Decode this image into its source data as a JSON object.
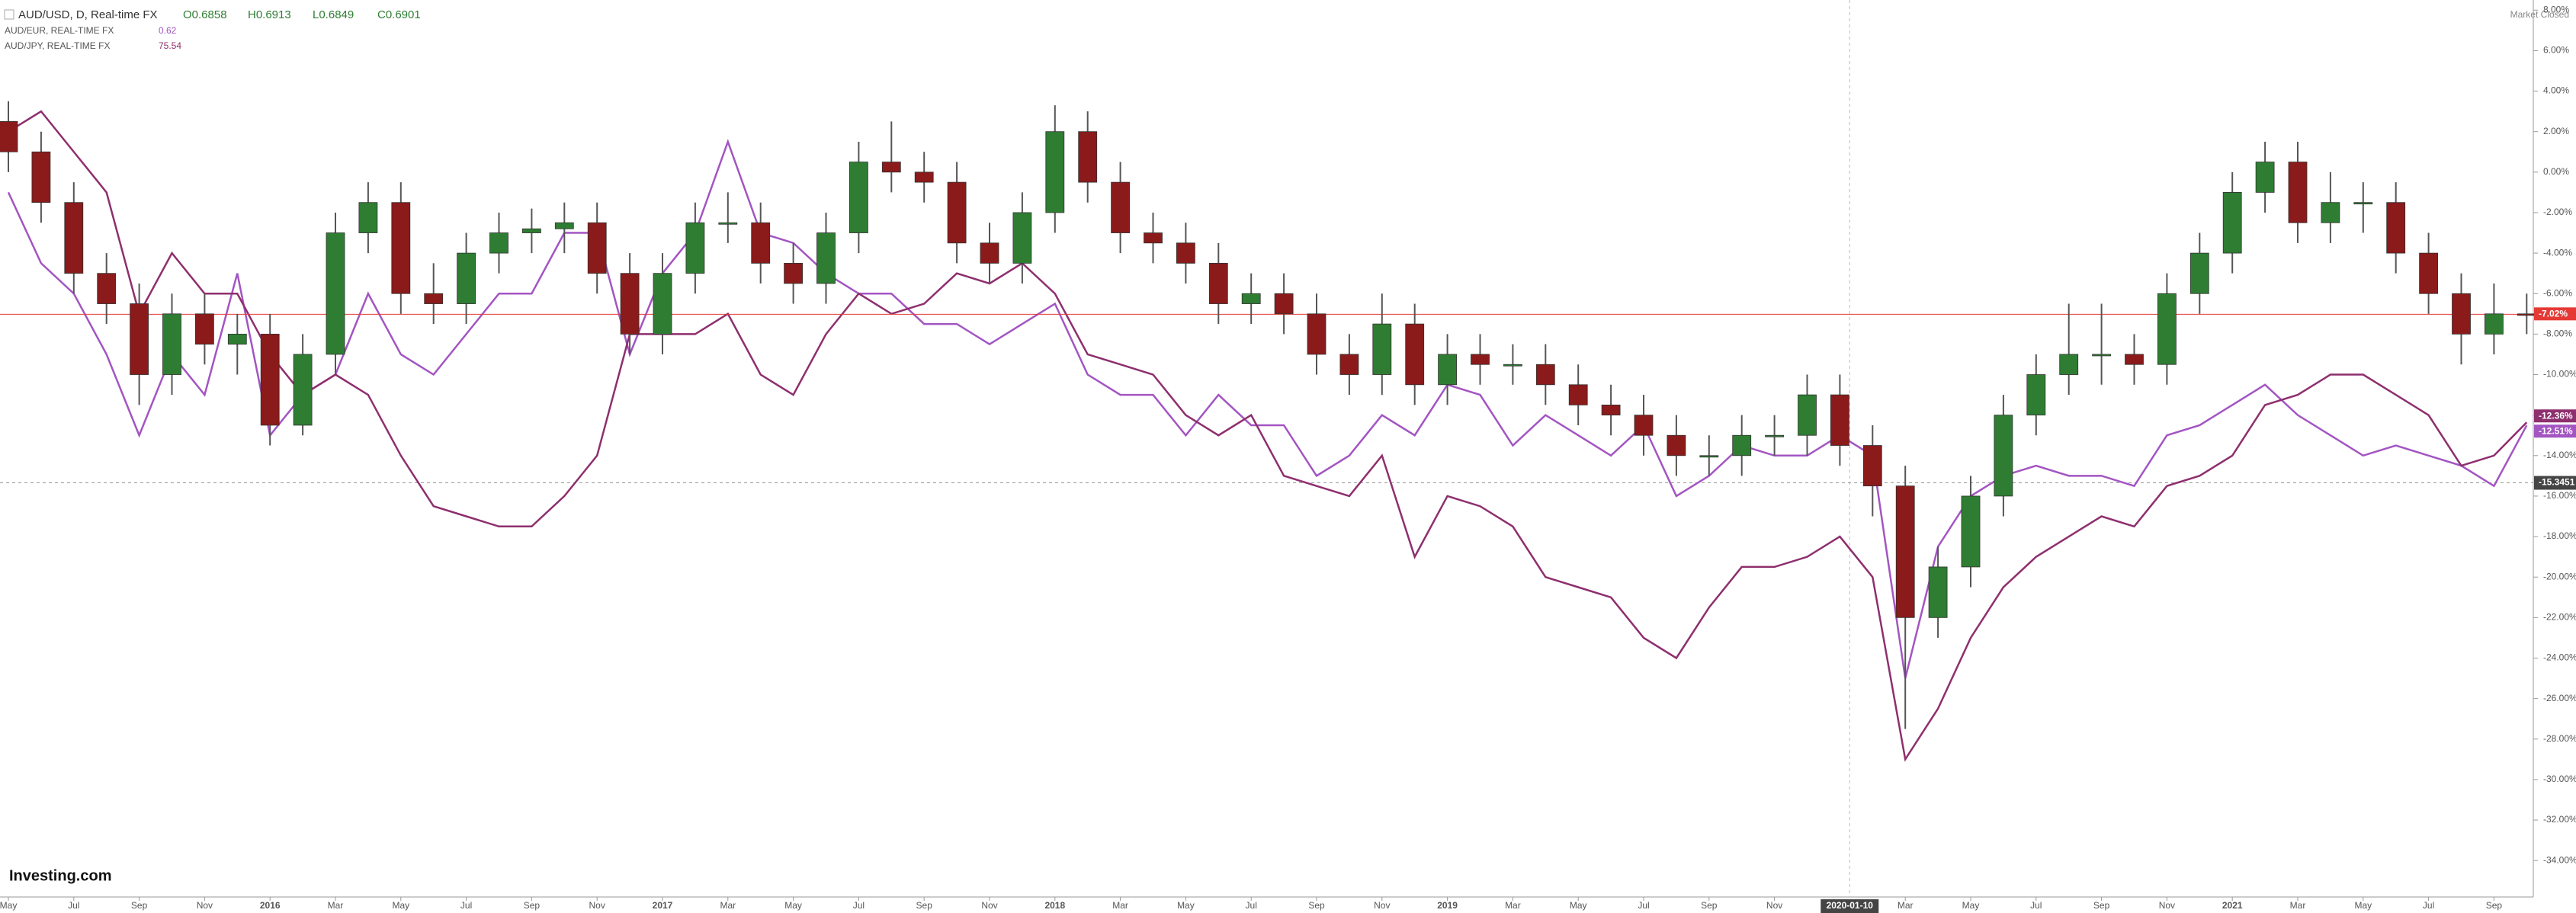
{
  "header": {
    "title": "AUD/USD, D, Real-time FX",
    "values": [
      "O0.6858",
      "H0.6913",
      "L0.6849",
      "C0.6901"
    ],
    "status": "Market Closed"
  },
  "logo": "Investing.com",
  "chart_data": {
    "type": "candlestick",
    "x": [
      "2015-05",
      "2015-06",
      "2015-07",
      "2015-08",
      "2015-09",
      "2015-10",
      "2015-11",
      "2015-12",
      "2016-01",
      "2016-02",
      "2016-03",
      "2016-04",
      "2016-05",
      "2016-06",
      "2016-07",
      "2016-08",
      "2016-09",
      "2016-10",
      "2016-11",
      "2016-12",
      "2017-01",
      "2017-02",
      "2017-03",
      "2017-04",
      "2017-05",
      "2017-06",
      "2017-07",
      "2017-08",
      "2017-09",
      "2017-10",
      "2017-11",
      "2017-12",
      "2018-01",
      "2018-02",
      "2018-03",
      "2018-04",
      "2018-05",
      "2018-06",
      "2018-07",
      "2018-08",
      "2018-09",
      "2018-10",
      "2018-11",
      "2018-12",
      "2019-01",
      "2019-02",
      "2019-03",
      "2019-04",
      "2019-05",
      "2019-06",
      "2019-07",
      "2019-08",
      "2019-09",
      "2019-10",
      "2019-11",
      "2019-12",
      "2020-01",
      "2020-02",
      "2020-03",
      "2020-04",
      "2020-05",
      "2020-06",
      "2020-07",
      "2020-08",
      "2020-09",
      "2020-10",
      "2020-11",
      "2020-12",
      "2021-01",
      "2021-02",
      "2021-03",
      "2021-04",
      "2021-05",
      "2021-06",
      "2021-07",
      "2021-08",
      "2021-09",
      "2021-10"
    ],
    "candles": {
      "name": "AUD/USD",
      "up_color": "#2e7d32",
      "down_color": "#8b1a1a",
      "price_label": "-7.02%",
      "line_color": "#e53935",
      "open": [
        2.5,
        1,
        -1.5,
        -5,
        -6.5,
        -10,
        -7,
        -8.5,
        -8,
        -12.5,
        -9,
        -3,
        -1.5,
        -6,
        -6.5,
        -4,
        -3,
        -2.8,
        -2.5,
        -5,
        -8,
        -5,
        -2.5,
        -2.5,
        -4.5,
        -5.5,
        -3,
        0.5,
        0,
        -0.5,
        -3.5,
        -4.5,
        -2,
        2,
        -0.5,
        -3,
        -3.5,
        -4.5,
        -6.5,
        -6,
        -7,
        -9,
        -10,
        -7.5,
        -10.5,
        -9,
        -9.5,
        -9.5,
        -10.5,
        -11.5,
        -12,
        -13,
        -14,
        -14,
        -13,
        -13,
        -11,
        -13.5,
        -15.5,
        -22,
        -19.5,
        -16,
        -12,
        -10,
        -9,
        -9,
        -9.5,
        -6,
        -4,
        -1,
        0.5,
        -2.5,
        -1.5,
        -1.5,
        -4,
        -6,
        -8,
        -7
      ],
      "high": [
        3.5,
        2,
        -0.5,
        -4,
        -5.5,
        -6,
        -6,
        -7,
        -7,
        -8,
        -2,
        -0.5,
        -0.5,
        -4.5,
        -3,
        -2,
        -1.8,
        -1.5,
        -1.5,
        -4,
        -4,
        -1.5,
        -1,
        -1.5,
        -3.5,
        -2,
        1.5,
        2.5,
        1,
        0.5,
        -2.5,
        -1,
        3.3,
        3,
        0.5,
        -2,
        -2.5,
        -3.5,
        -5,
        -5,
        -6,
        -8,
        -6,
        -6.5,
        -8,
        -8,
        -8.5,
        -8.5,
        -9.5,
        -10.5,
        -11,
        -12,
        -13,
        -12,
        -12,
        -10,
        -10,
        -12.5,
        -14.5,
        -18.5,
        -15,
        -11,
        -9,
        -6.5,
        -6.5,
        -8,
        -5,
        -3,
        0,
        1.5,
        1.5,
        0,
        -0.5,
        -0.5,
        -3,
        -5,
        -5.5,
        -6
      ],
      "low": [
        0,
        -2.5,
        -6,
        -7.5,
        -11.5,
        -11,
        -9.5,
        -10,
        -13.5,
        -13,
        -10,
        -4,
        -7,
        -7.5,
        -7.5,
        -5,
        -4,
        -4,
        -6,
        -9,
        -9,
        -6,
        -3.5,
        -5.5,
        -6.5,
        -6.5,
        -4,
        -1,
        -1.5,
        -4.5,
        -5.5,
        -5.5,
        -3,
        -1.5,
        -4,
        -4.5,
        -5.5,
        -7.5,
        -7.5,
        -8,
        -10,
        -11,
        -11,
        -11.5,
        -11.5,
        -10.5,
        -10.5,
        -11.5,
        -12.5,
        -13,
        -14,
        -15,
        -15,
        -15,
        -14,
        -14,
        -14.5,
        -17,
        -27.5,
        -23,
        -20.5,
        -17,
        -13,
        -11,
        -10.5,
        -10.5,
        -10.5,
        -7,
        -5,
        -2,
        -3.5,
        -3.5,
        -3,
        -5,
        -7,
        -9.5,
        -9,
        -8
      ],
      "close": [
        1,
        -1.5,
        -5,
        -6.5,
        -10,
        -7,
        -8.5,
        -8,
        -12.5,
        -9,
        -3,
        -1.5,
        -6,
        -6.5,
        -4,
        -3,
        -2.8,
        -2.5,
        -5,
        -8,
        -5,
        -2.5,
        -2.5,
        -4.5,
        -5.5,
        -3,
        0.5,
        0,
        -0.5,
        -3.5,
        -4.5,
        -2,
        2,
        -0.5,
        -3,
        -3.5,
        -4.5,
        -6.5,
        -6,
        -7,
        -9,
        -10,
        -7.5,
        -10.5,
        -9,
        -9.5,
        -9.5,
        -10.5,
        -11.5,
        -12,
        -13,
        -14,
        -14,
        -13,
        -13,
        -11,
        -13.5,
        -15.5,
        -22,
        -19.5,
        -16,
        -12,
        -10,
        -9,
        -9,
        -9.5,
        -6,
        -4,
        -1,
        0.5,
        -2.5,
        -1.5,
        -1.5,
        -4,
        -6,
        -8,
        -7,
        -7.02
      ]
    },
    "series": [
      {
        "name": "AUD/EUR, REAL-TIME FX",
        "last": "0.62",
        "color": "#a355c2",
        "price_label": "-12.51%",
        "values": [
          -1,
          -4.5,
          -6,
          -9,
          -13,
          -9,
          -11,
          -5,
          -13,
          -11,
          -10,
          -6,
          -9,
          -10,
          -8,
          -6,
          -6,
          -3,
          -3,
          -9,
          -5,
          -3,
          1.5,
          -3,
          -3.5,
          -5,
          -6,
          -6,
          -7.5,
          -7.5,
          -8.5,
          -7.5,
          -6.5,
          -10,
          -11,
          -11,
          -13,
          -11,
          -12.5,
          -12.5,
          -15,
          -14,
          -12,
          -13,
          -10.5,
          -11,
          -13.5,
          -12,
          -13,
          -14,
          -12.5,
          -16,
          -15,
          -13.5,
          -14,
          -14,
          -13,
          -14,
          -25,
          -18.5,
          -16,
          -15,
          -14.5,
          -15,
          -15,
          -15.5,
          -13,
          -12.5,
          -11.5,
          -10.5,
          -12,
          -13,
          -14,
          -13.5,
          -14,
          -14.5,
          -15.5,
          -12.51
        ]
      },
      {
        "name": "AUD/JPY, REAL-TIME FX",
        "last": "75.54",
        "color": "#8e2f6e",
        "price_label": "-12.36%",
        "values": [
          2,
          3,
          1,
          -1,
          -7,
          -4,
          -6,
          -6,
          -9,
          -11,
          -10,
          -11,
          -14,
          -16.5,
          -17,
          -17.5,
          -17.5,
          -16,
          -14,
          -8,
          -8,
          -8,
          -7,
          -10,
          -11,
          -8,
          -6,
          -7,
          -6.5,
          -5,
          -5.5,
          -4.5,
          -6,
          -9,
          -9.5,
          -10,
          -12,
          -13,
          -12,
          -15,
          -15.5,
          -16,
          -14,
          -19,
          -16,
          -16.5,
          -17.5,
          -20,
          -20.5,
          -21,
          -23,
          -24,
          -21.5,
          -19.5,
          -19.5,
          -19,
          -18,
          -20,
          -29,
          -26.5,
          -23,
          -20.5,
          -19,
          -18,
          -17,
          -17.5,
          -15.5,
          -15,
          -14,
          -11.5,
          -11,
          -10,
          -10,
          -11,
          -12,
          -14.5,
          -14,
          -12.36
        ]
      }
    ],
    "crosshair": {
      "x": "2020-01-10",
      "y": -15.3451
    },
    "ylim": [
      -35.8,
      8.5
    ],
    "yticks": [
      {
        "value": 8,
        "label": "8.00%"
      },
      {
        "value": 6,
        "label": "6.00%"
      },
      {
        "value": 4,
        "label": "4.00%"
      },
      {
        "value": 2,
        "label": "2.00%"
      },
      {
        "value": 0,
        "label": "0.00%"
      },
      {
        "value": -2,
        "label": "-2.00%"
      },
      {
        "value": -4,
        "label": "-4.00%"
      },
      {
        "value": -6,
        "label": "-6.00%"
      },
      {
        "value": -8,
        "label": "-8.00%"
      },
      {
        "value": -10,
        "label": "-10.00%"
      },
      {
        "value": -12,
        "label": "-12.00%"
      },
      {
        "value": -14,
        "label": "-14.00%"
      },
      {
        "value": -16,
        "label": "-16.00%"
      },
      {
        "value": -18,
        "label": "-18.00%"
      },
      {
        "value": -20,
        "label": "-20.00%"
      },
      {
        "value": -22,
        "label": "-22.00%"
      },
      {
        "value": -24,
        "label": "-24.00%"
      },
      {
        "value": -26,
        "label": "-26.00%"
      },
      {
        "value": -28,
        "label": "-28.00%"
      },
      {
        "value": -30,
        "label": "-30.00%"
      },
      {
        "value": -32,
        "label": "-32.00%"
      },
      {
        "value": -34,
        "label": "-34.00%"
      }
    ],
    "xticks": [
      {
        "value": "2015-05",
        "label": "May"
      },
      {
        "value": "2015-07",
        "label": "Jul"
      },
      {
        "value": "2015-09",
        "label": "Sep"
      },
      {
        "value": "2015-11",
        "label": "Nov"
      },
      {
        "value": "2016-01",
        "label": "2016"
      },
      {
        "value": "2016-03",
        "label": "Mar"
      },
      {
        "value": "2016-05",
        "label": "May"
      },
      {
        "value": "2016-07",
        "label": "Jul"
      },
      {
        "value": "2016-09",
        "label": "Sep"
      },
      {
        "value": "2016-11",
        "label": "Nov"
      },
      {
        "value": "2017-01",
        "label": "2017"
      },
      {
        "value": "2017-03",
        "label": "Mar"
      },
      {
        "value": "2017-05",
        "label": "May"
      },
      {
        "value": "2017-07",
        "label": "Jul"
      },
      {
        "value": "2017-09",
        "label": "Sep"
      },
      {
        "value": "2017-11",
        "label": "Nov"
      },
      {
        "value": "2018-01",
        "label": "2018"
      },
      {
        "value": "2018-03",
        "label": "Mar"
      },
      {
        "value": "2018-05",
        "label": "May"
      },
      {
        "value": "2018-07",
        "label": "Jul"
      },
      {
        "value": "2018-09",
        "label": "Sep"
      },
      {
        "value": "2018-11",
        "label": "Nov"
      },
      {
        "value": "2019-01",
        "label": "2019"
      },
      {
        "value": "2019-03",
        "label": "Mar"
      },
      {
        "value": "2019-05",
        "label": "May"
      },
      {
        "value": "2019-07",
        "label": "Jul"
      },
      {
        "value": "2019-09",
        "label": "Sep"
      },
      {
        "value": "2019-11",
        "label": "Nov"
      },
      {
        "value": "2020-03",
        "label": "Mar"
      },
      {
        "value": "2020-05",
        "label": "May"
      },
      {
        "value": "2020-07",
        "label": "Jul"
      },
      {
        "value": "2020-09",
        "label": "Sep"
      },
      {
        "value": "2020-11",
        "label": "Nov"
      },
      {
        "value": "2021-01",
        "label": "2021"
      },
      {
        "value": "2021-03",
        "label": "Mar"
      },
      {
        "value": "2021-05",
        "label": "May"
      },
      {
        "value": "2021-07",
        "label": "Jul"
      },
      {
        "value": "2021-09",
        "label": "Sep"
      }
    ]
  }
}
